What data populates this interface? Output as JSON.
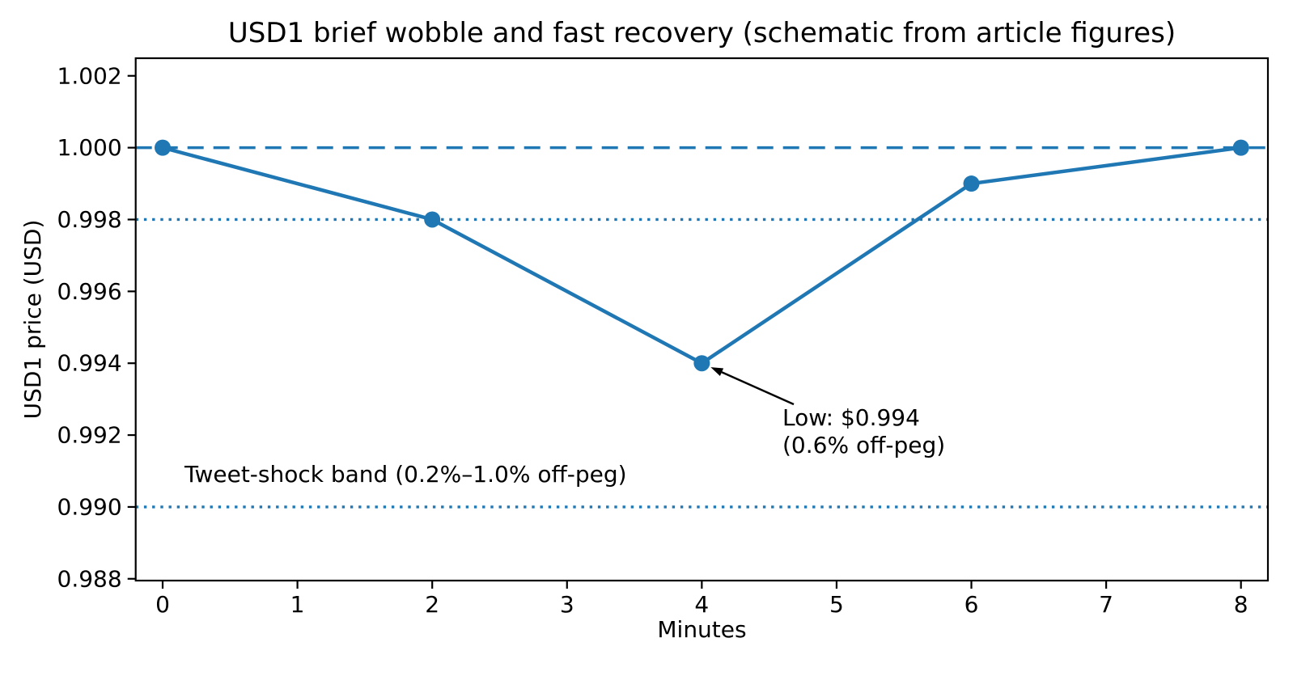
{
  "figure": {
    "background": "#ffffff",
    "text_color": "#000000",
    "accent": "#1f77b4"
  },
  "chart_data": {
    "type": "line",
    "title": "USD1 brief wobble and fast recovery (schematic from article figures)",
    "xlabel": "Minutes",
    "ylabel": "USD1 price (USD)",
    "x": [
      0,
      2,
      4,
      6,
      8
    ],
    "y": [
      1.0,
      0.998,
      0.994,
      0.999,
      1.0
    ],
    "line_color": "#1f77b4",
    "marker": "circle",
    "grid": false,
    "legend_position": "none",
    "xlim": [
      -0.2,
      8.2
    ],
    "ylim": [
      0.98795,
      1.00249
    ],
    "xticks": [
      0,
      1,
      2,
      3,
      4,
      5,
      6,
      7,
      8
    ],
    "xtick_labels": [
      "0",
      "1",
      "2",
      "3",
      "4",
      "5",
      "6",
      "7",
      "8"
    ],
    "yticks": [
      0.988,
      0.99,
      0.992,
      0.994,
      0.996,
      0.998,
      1.0,
      1.002
    ],
    "ytick_labels": [
      "0.988",
      "0.990",
      "0.992",
      "0.994",
      "0.996",
      "0.998",
      "1.000",
      "1.002"
    ],
    "reference_lines": [
      {
        "y": 1.0,
        "style": "dashed",
        "color": "#1f77b4"
      },
      {
        "y": 0.998,
        "style": "dotted",
        "color": "#1f77b4"
      },
      {
        "y": 0.99,
        "style": "dotted",
        "color": "#1f77b4"
      }
    ],
    "annotation": {
      "text_lines": [
        "Low: $0.994",
        "(0.6% off-peg)"
      ],
      "target_xy": [
        4,
        0.994
      ]
    },
    "band_label": "Tweet-shock band (0.2%–1.0% off-peg)"
  }
}
